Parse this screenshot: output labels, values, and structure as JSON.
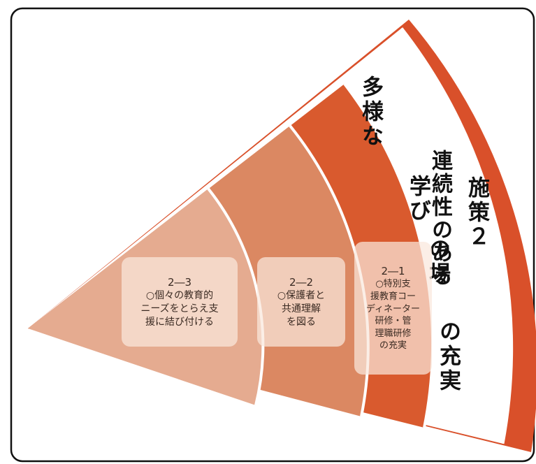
{
  "diagram": {
    "colors": {
      "frame": "#111111",
      "outer_band": "#d9502a",
      "level1": "#d95a2e",
      "level2": "#db8862",
      "level3": "#e5ab90",
      "card_fill": "#f9e7dc"
    },
    "band_title": {
      "col1": "多様な",
      "col2": "学び",
      "col3": "の場",
      "col4": "の充実",
      "col5": "連続性のある",
      "col6": "施策２"
    },
    "items": [
      {
        "number": "2―1",
        "lines": [
          "○特別支",
          "援教育コー",
          "ディネーター",
          "研修・管",
          "理職研修",
          "の充実"
        ]
      },
      {
        "number": "2―2",
        "lines": [
          "○保護者と",
          "共通理解",
          "を図る"
        ]
      },
      {
        "number": "2―3",
        "lines": [
          "○個々の教育的",
          "ニーズをとらえ支",
          "援に結び付ける"
        ]
      }
    ]
  }
}
